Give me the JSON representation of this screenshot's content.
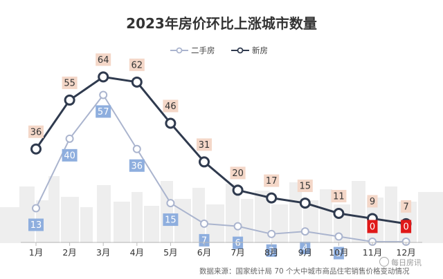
{
  "chart_data": {
    "type": "line",
    "title": "2023年房价环比上涨城市数量",
    "categories": [
      "1月",
      "2月",
      "3月",
      "4月",
      "5月",
      "6月",
      "7月",
      "8月",
      "9月",
      "10月",
      "11月",
      "12月"
    ],
    "series": [
      {
        "name": "二手房",
        "values": [
          13,
          40,
          57,
          36,
          15,
          7,
          6,
          3,
          4,
          2,
          0,
          0
        ],
        "color": "#aab4ce"
      },
      {
        "name": "新房",
        "values": [
          36,
          55,
          64,
          62,
          46,
          31,
          20,
          17,
          15,
          11,
          9,
          7
        ],
        "color": "#2f3a4e"
      }
    ],
    "ylim": [
      0,
      70
    ],
    "xlabel": "",
    "ylabel": "",
    "legend": "top-center",
    "grid": false
  },
  "colors": {
    "new_label_bg": "#f4d7c8",
    "second_label_bg": "#8eaede",
    "zero_label_bg": "#e01818",
    "title": "#333333"
  },
  "footer": {
    "source": "数据来源：国家统计局 70 个大中城市商品住宅销售价格变动情况",
    "watermark": "每日房讯"
  }
}
